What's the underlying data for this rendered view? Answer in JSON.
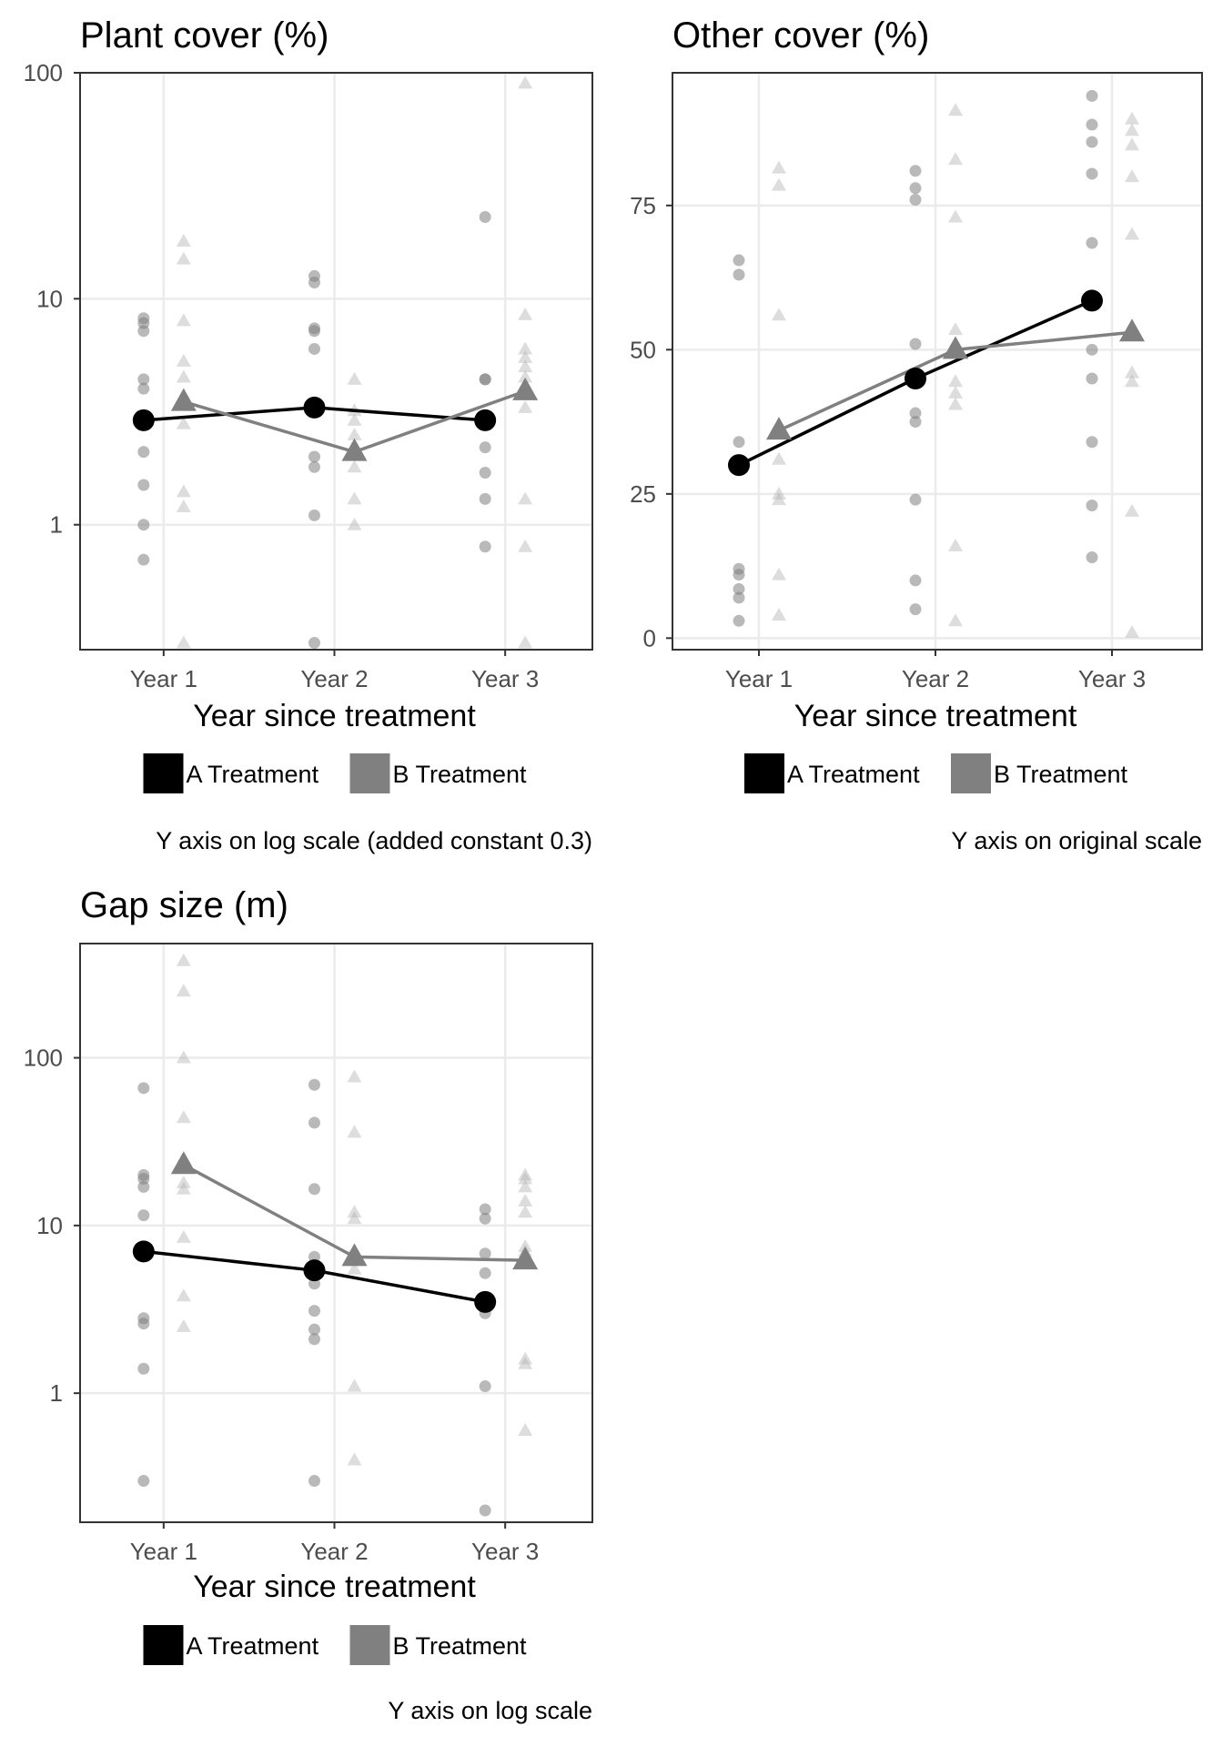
{
  "chart_data": [
    {
      "type": "scatter",
      "title": "Plant cover (%)",
      "xlabel": "Year since treatment",
      "ylabel": "",
      "y_scale": "log",
      "categories": [
        "Year 1",
        "Year 2",
        "Year 3"
      ],
      "y_ticks": [
        1,
        10,
        100
      ],
      "ylim": [
        0.28,
        100
      ],
      "caption": "Y axis on log scale (added constant 0.3)",
      "grid": true,
      "legend_position": "bottom",
      "series": [
        {
          "name": "A Treatment",
          "marker": "circle",
          "color": "#000000",
          "means": [
            2.9,
            3.3,
            2.9
          ],
          "points": [
            [
              0.7,
              1.0,
              1.5,
              2.1,
              2.8,
              2.9,
              4.0,
              4.4,
              7.2,
              7.8,
              8.2
            ],
            [
              0.3,
              1.1,
              1.8,
              2.0,
              6.0,
              7.2,
              7.4,
              11.8,
              12.6
            ],
            [
              0.8,
              1.3,
              1.7,
              2.2,
              4.4,
              4.4,
              23.0
            ]
          ]
        },
        {
          "name": "B Treatment",
          "marker": "triangle",
          "color": "#808080",
          "means": [
            3.5,
            2.1,
            3.9
          ],
          "points": [
            [
              0.3,
              1.2,
              1.4,
              2.8,
              3.5,
              4.5,
              5.3,
              8.0,
              15.0,
              18.0
            ],
            [
              1.0,
              1.3,
              1.8,
              2.5,
              2.9,
              3.2,
              4.4
            ],
            [
              0.3,
              0.8,
              1.3,
              3.3,
              4.5,
              5.0,
              5.5,
              6.0,
              8.5,
              90.0
            ]
          ]
        }
      ]
    },
    {
      "type": "scatter",
      "title": "Other cover (%)",
      "xlabel": "Year since treatment",
      "ylabel": "",
      "y_scale": "linear",
      "categories": [
        "Year 1",
        "Year 2",
        "Year 3"
      ],
      "y_ticks": [
        0,
        25,
        50,
        75
      ],
      "ylim": [
        -2,
        98
      ],
      "caption": "Y axis on original scale",
      "grid": true,
      "legend_position": "bottom",
      "series": [
        {
          "name": "A Treatment",
          "marker": "circle",
          "color": "#000000",
          "means": [
            30,
            45,
            58.5
          ],
          "points": [
            [
              3,
              7,
              8.5,
              11,
              12,
              34,
              63,
              65.5
            ],
            [
              5,
              10,
              24,
              37.5,
              39,
              51,
              76,
              78,
              81
            ],
            [
              14,
              23,
              34,
              45,
              50,
              68.5,
              80.5,
              86,
              89,
              94
            ]
          ]
        },
        {
          "name": "B Treatment",
          "marker": "triangle",
          "color": "#808080",
          "means": [
            36,
            50,
            53
          ],
          "points": [
            [
              4,
              11,
              24,
              25,
              31,
              56,
              78.5,
              81.5
            ],
            [
              3,
              16,
              40.5,
              42.5,
              44.5,
              53.5,
              73,
              83,
              91.5
            ],
            [
              1,
              22,
              44.5,
              46,
              70,
              80,
              85.5,
              88,
              90
            ]
          ]
        }
      ]
    },
    {
      "type": "scatter",
      "title": "Gap size (m)",
      "xlabel": "Year since treatment",
      "ylabel": "",
      "y_scale": "log",
      "categories": [
        "Year 1",
        "Year 2",
        "Year 3"
      ],
      "y_ticks": [
        1,
        10,
        100
      ],
      "ylim": [
        0.17,
        480
      ],
      "caption": "Y axis on log scale",
      "grid": true,
      "legend_position": "bottom",
      "series": [
        {
          "name": "A Treatment",
          "marker": "circle",
          "color": "#000000",
          "means": [
            7.0,
            5.4,
            3.5
          ],
          "points": [
            [
              0.3,
              1.4,
              2.6,
              2.8,
              7.0,
              11.5,
              17,
              19,
              20,
              66
            ],
            [
              0.3,
              2.1,
              2.4,
              3.1,
              4.5,
              5.5,
              6.5,
              16.5,
              41,
              69
            ],
            [
              0.2,
              1.1,
              3.0,
              5.2,
              6.8,
              11,
              12.5
            ]
          ]
        },
        {
          "name": "B Treatment",
          "marker": "triangle",
          "color": "#808080",
          "means": [
            23,
            6.5,
            6.2
          ],
          "points": [
            [
              2.5,
              3.8,
              8.5,
              16.5,
              18,
              44,
              100,
              250,
              380
            ],
            [
              0.4,
              1.1,
              5.5,
              6.5,
              11,
              12,
              36,
              77
            ],
            [
              0.6,
              1.5,
              1.6,
              7.0,
              7.5,
              12,
              14,
              17,
              19,
              20
            ]
          ]
        }
      ]
    }
  ]
}
